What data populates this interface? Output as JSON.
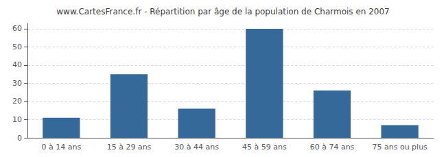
{
  "chart_data": {
    "type": "bar",
    "title": "www.CartesFrance.fr - Répartition par âge de la population de Charmois en 2007",
    "categories": [
      "0 à 14 ans",
      "15 à 29 ans",
      "30 à 44 ans",
      "45 à 59 ans",
      "60 à 74 ans",
      "75 ans ou plus"
    ],
    "values": [
      11,
      35,
      16,
      60,
      26,
      7
    ],
    "color": "#34699a",
    "ylim": [
      0,
      63
    ],
    "yticks": [
      0,
      10,
      20,
      30,
      40,
      50,
      60
    ],
    "grid": true
  }
}
